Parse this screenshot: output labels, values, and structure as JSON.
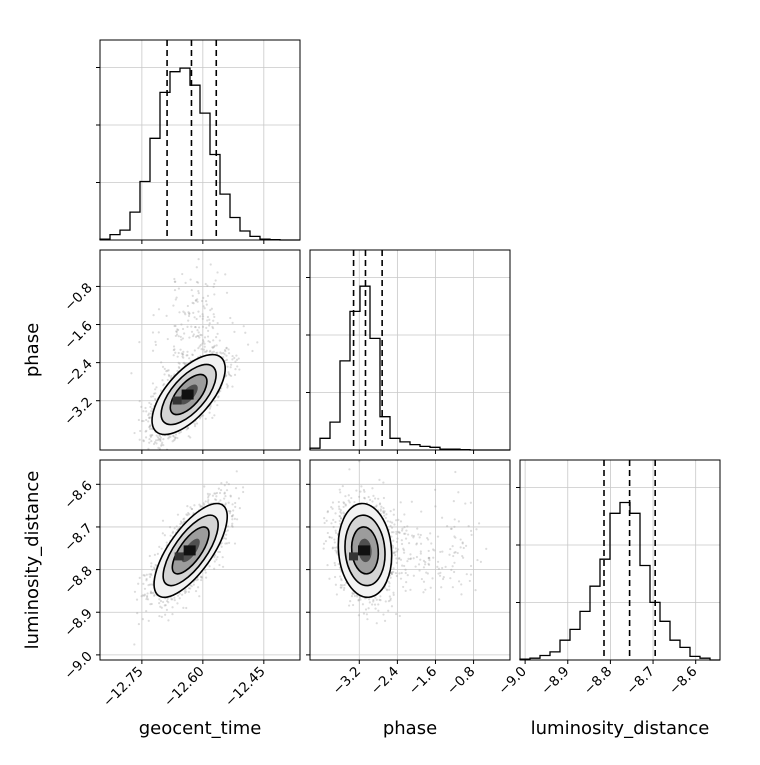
{
  "chart_data": {
    "type": "corner",
    "parameters": [
      "geocent_time",
      "phase",
      "luminosity_distance"
    ],
    "axis_labels": {
      "x": [
        "geocent_time",
        "phase",
        "luminosity_distance"
      ],
      "y": [
        "phase",
        "luminosity_distance"
      ]
    },
    "ranges": {
      "geocent_time": [
        -12.853,
        -12.361
      ],
      "phase": [
        -4.235,
        -0.035
      ],
      "luminosity_distance": [
        -9.012,
        -8.543
      ]
    },
    "ticks": {
      "geocent_time": {
        "values": [
          -12.75,
          -12.6,
          -12.45
        ],
        "labels": [
          "−12.75",
          "−12.60",
          "−12.45"
        ]
      },
      "phase": {
        "values": [
          -3.2,
          -2.4,
          -1.6,
          -0.8
        ],
        "labels": [
          "−3.2",
          "−2.4",
          "−1.6",
          "−0.8"
        ]
      },
      "luminosity_distance": {
        "values": [
          -9.0,
          -8.9,
          -8.8,
          -8.7,
          -8.6
        ],
        "labels": [
          "−9.0",
          "−8.9",
          "−8.8",
          "−8.7",
          "−8.6"
        ]
      }
    },
    "quantiles": {
      "geocent_time": [
        -12.688,
        -12.628,
        -12.567
      ],
      "phase": [
        -3.32,
        -3.07,
        -2.72
      ],
      "luminosity_distance": [
        -8.815,
        -8.755,
        -8.695
      ]
    },
    "histograms": {
      "geocent_time": {
        "edges": [
          -12.853,
          -12.8284,
          -12.8038,
          -12.7792,
          -12.7546,
          -12.73,
          -12.7054,
          -12.6808,
          -12.6562,
          -12.6316,
          -12.607,
          -12.5824,
          -12.5578,
          -12.5332,
          -12.5086,
          -12.484,
          -12.4594,
          -12.4348,
          -12.4102,
          -12.3856,
          -12.361
        ],
        "counts": [
          0.5,
          3,
          5.5,
          15.5,
          32.5,
          56.5,
          82,
          93.5,
          95.5,
          86,
          70.5,
          47.5,
          25.5,
          12.5,
          5,
          2,
          0.5,
          0.2,
          0,
          0
        ],
        "max": 100
      },
      "phase": {
        "edges": [
          -4.235,
          -4.025,
          -3.815,
          -3.605,
          -3.395,
          -3.185,
          -2.975,
          -2.765,
          -2.555,
          -2.345,
          -2.135,
          -1.925,
          -1.715,
          -1.505,
          -1.295,
          -1.085,
          -0.875,
          -0.665,
          -0.455,
          -0.245,
          -0.035
        ],
        "counts": [
          1,
          6.5,
          15.5,
          49.5,
          77,
          91,
          62,
          18.5,
          6.5,
          4.5,
          3,
          2,
          1.5,
          0.5,
          0.5,
          0.2,
          0,
          0,
          0,
          0
        ],
        "max": 100
      },
      "luminosity_distance": {
        "edges": [
          -9.012,
          -8.98855,
          -8.9651,
          -8.94165,
          -8.9182,
          -8.89475,
          -8.8713,
          -8.84785,
          -8.8244,
          -8.80095,
          -8.7775,
          -8.75405,
          -8.7306,
          -8.70715,
          -8.6837,
          -8.66025,
          -8.6368,
          -8.61335,
          -8.5899,
          -8.56645,
          -8.543
        ],
        "counts": [
          0.5,
          1,
          2.5,
          4.5,
          11,
          17,
          27,
          41,
          56,
          81.5,
          87.5,
          81.5,
          52.5,
          32,
          21.5,
          11,
          7,
          2,
          1,
          0
        ],
        "max": 100
      }
    },
    "contour_peaks": {
      "phase_vs_geocent_time": {
        "x": -12.635,
        "y": -3.07,
        "correlation": 0.65
      },
      "luminosity_distance_vs_geocent_time": {
        "x": -12.63,
        "y": -8.755,
        "correlation": 0.72
      },
      "luminosity_distance_vs_phase": {
        "x": -3.08,
        "y": -8.755,
        "correlation": -0.1
      }
    },
    "grid": true
  }
}
